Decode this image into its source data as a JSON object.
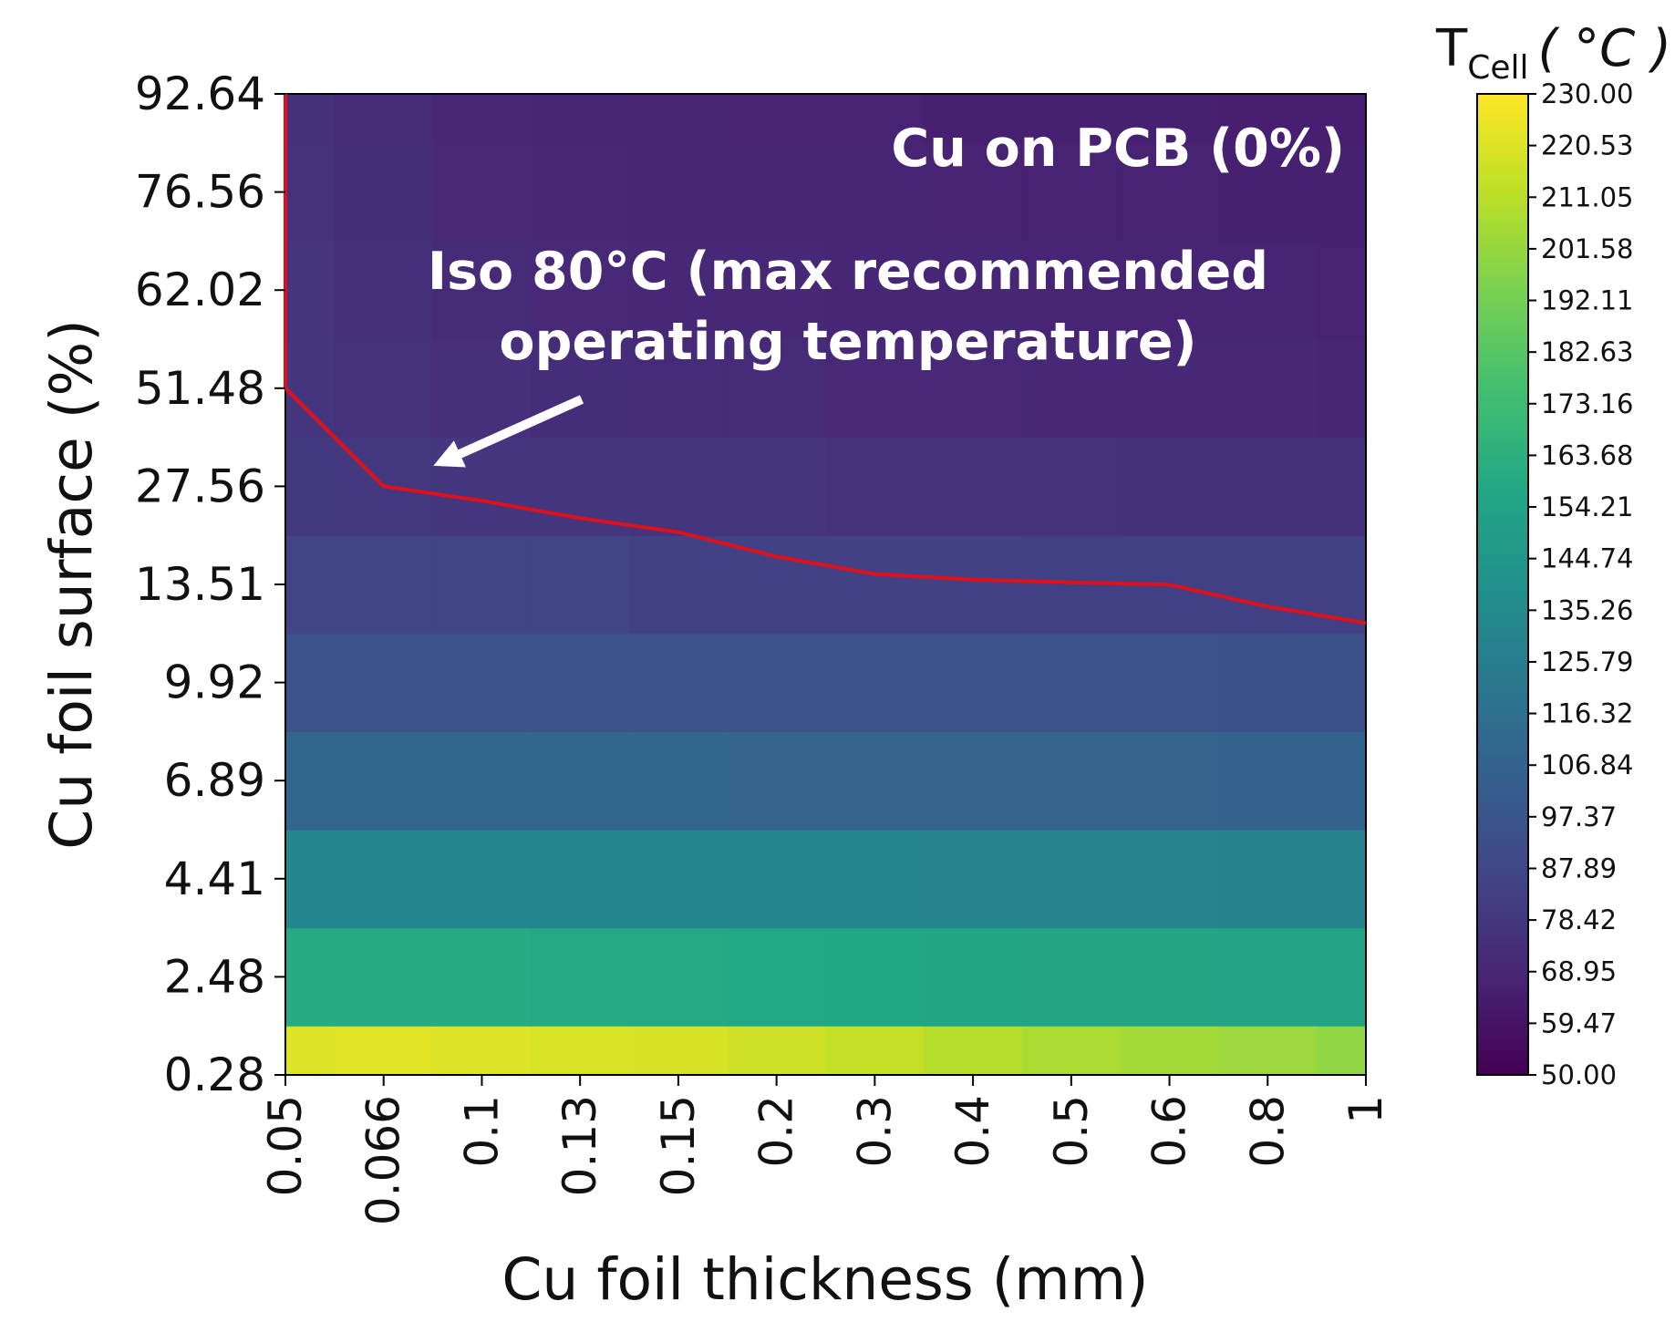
{
  "chart_data": {
    "type": "heatmap",
    "title": "",
    "xlabel": "Cu foil thickness (mm)",
    "ylabel": "Cu foil surface (%)",
    "x_categories": [
      "0.05",
      "0.066",
      "0.1",
      "0.13",
      "0.15",
      "0.2",
      "0.3",
      "0.4",
      "0.5",
      "0.6",
      "0.8",
      "1"
    ],
    "y_categories": [
      "0.28",
      "2.48",
      "4.41",
      "6.89",
      "9.92",
      "13.51",
      "27.56",
      "51.48",
      "62.02",
      "76.56",
      "92.64"
    ],
    "values": [
      [
        221,
        222,
        221,
        220,
        219,
        217,
        214,
        210,
        207,
        205,
        203,
        200
      ],
      [
        160,
        160,
        160,
        159,
        159,
        158,
        157,
        156,
        155,
        155,
        154,
        154
      ],
      [
        133,
        133,
        133,
        133,
        132,
        132,
        132,
        131,
        131,
        131,
        130,
        130
      ],
      [
        109,
        109,
        109,
        109,
        109,
        108,
        108,
        108,
        108,
        108,
        107,
        107
      ],
      [
        96,
        96,
        96,
        96,
        96,
        95,
        95,
        95,
        95,
        95,
        94,
        94
      ],
      [
        86,
        86,
        86,
        86,
        85,
        85,
        85,
        85,
        84,
        84,
        84,
        84
      ],
      [
        80,
        79,
        78,
        78,
        77,
        77,
        76,
        76,
        76,
        75,
        75,
        75
      ],
      [
        78,
        76,
        74,
        73,
        72,
        72,
        71,
        71,
        70,
        70,
        70,
        69
      ],
      [
        77,
        74,
        72,
        71,
        70,
        70,
        69,
        69,
        68,
        68,
        68,
        67
      ],
      [
        76,
        73,
        71,
        70,
        69,
        68,
        68,
        67,
        67,
        67,
        66,
        66
      ],
      [
        75,
        72,
        70,
        69,
        68,
        67,
        67,
        66,
        66,
        66,
        65,
        65
      ]
    ],
    "colorbar": {
      "label_main": "T",
      "label_sub": "Cell",
      "label_unit": "( °C )",
      "min": 50.0,
      "max": 230.0,
      "ticks": [
        "230.00",
        "220.53",
        "211.05",
        "201.58",
        "192.11",
        "182.63",
        "173.16",
        "163.68",
        "154.21",
        "144.74",
        "135.26",
        "125.79",
        "116.32",
        "106.84",
        "97.37",
        "87.89",
        "78.42",
        "68.95",
        "59.47",
        "50.00"
      ],
      "colormap": "viridis"
    },
    "iso_line": {
      "label_line1": "Iso 80°C (max recommended",
      "label_line2": "operating temperature)",
      "color": "#e0101a",
      "points": [
        {
          "x": 0.05,
          "y": 92.64
        },
        {
          "x": 0.05,
          "y": 62.02
        },
        {
          "x": 0.05,
          "y": 51.48
        },
        {
          "x": 0.066,
          "y": 27.56
        },
        {
          "x": 0.1,
          "y": 25.5
        },
        {
          "x": 0.13,
          "y": 23.0
        },
        {
          "x": 0.15,
          "y": 21.0
        },
        {
          "x": 0.2,
          "y": 17.5
        },
        {
          "x": 0.3,
          "y": 15.0
        },
        {
          "x": 0.4,
          "y": 14.2
        },
        {
          "x": 0.5,
          "y": 13.8
        },
        {
          "x": 0.6,
          "y": 13.5
        },
        {
          "x": 0.8,
          "y": 12.7
        },
        {
          "x": 1,
          "y": 12.1
        }
      ]
    },
    "annotation": "Cu on PCB (0%)",
    "legend": "none",
    "grid": false
  }
}
